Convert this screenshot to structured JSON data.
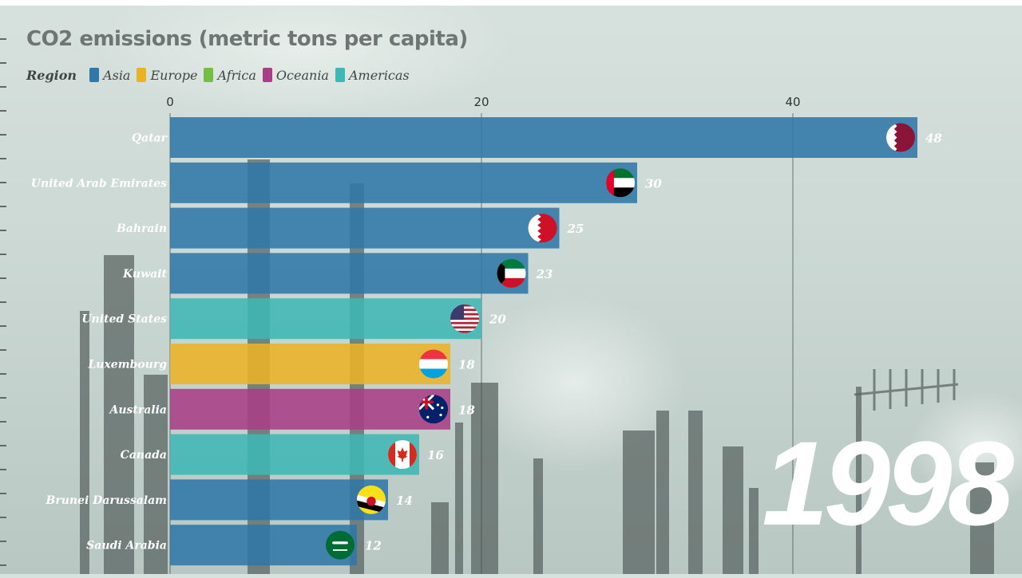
{
  "chart_data": {
    "type": "bar",
    "title": "CO2 emissions (metric tons per capita)",
    "legend_title": "Region",
    "regions": [
      {
        "name": "Asia",
        "color": "#2f78a8"
      },
      {
        "name": "Europe",
        "color": "#eab326"
      },
      {
        "name": "Africa",
        "color": "#74bf43"
      },
      {
        "name": "Oceania",
        "color": "#a93e86"
      },
      {
        "name": "Americas",
        "color": "#3fb7b5"
      }
    ],
    "categories": [
      "Qatar",
      "United Arab Emirates",
      "Bahrain",
      "Kuwait",
      "United States",
      "Luxembourg",
      "Australia",
      "Canada",
      "Brunei Darussalam",
      "Saudi Arabia"
    ],
    "values": [
      48,
      30,
      25,
      23,
      20,
      18,
      18,
      16,
      14,
      12
    ],
    "value_labels": [
      "48",
      "30",
      "25",
      "23",
      "20",
      "18",
      "18",
      "16",
      "14",
      "12"
    ],
    "bar_regions": [
      "Asia",
      "Asia",
      "Asia",
      "Asia",
      "Americas",
      "Europe",
      "Oceania",
      "Americas",
      "Asia",
      "Asia"
    ],
    "flags": [
      "qatar-flag",
      "uae-flag",
      "bahrain-flag",
      "kuwait-flag",
      "usa-flag",
      "luxembourg-flag",
      "australia-flag",
      "canada-flag",
      "brunei-flag",
      "saudi-flag"
    ],
    "x_ticks": [
      "0",
      "20",
      "40"
    ],
    "x_tick_values": [
      0,
      20,
      40
    ],
    "xlim": [
      0,
      54
    ],
    "xlabel": "",
    "ylabel": "",
    "grid": true,
    "legend_position": "top-left"
  },
  "year": "1998"
}
